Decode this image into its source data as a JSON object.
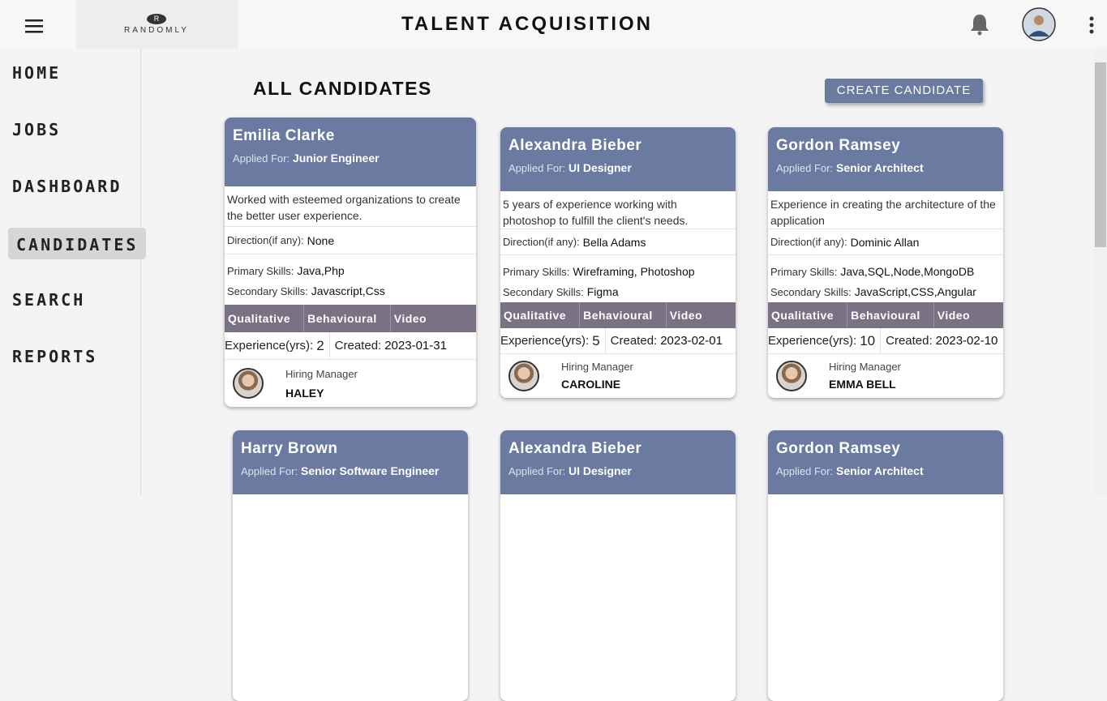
{
  "header": {
    "logo_mark": "R",
    "logo": "RANDOMLY",
    "title": "TALENT ACQUISITION"
  },
  "nav": [
    "HOME",
    "JOBS",
    "DASHBOARD",
    "CANDIDATES",
    "SEARCH",
    "REPORTS"
  ],
  "page": {
    "title": "ALL CANDIDATES",
    "create_button": "CREATE CANDIDATE"
  },
  "labels": {
    "applied_for": "Applied For:",
    "direction": "Direction(if any):",
    "primary_skills": "Primary Skills:",
    "secondary_skills": "Secondary Skills:",
    "tabs": [
      "Qualitative",
      "Behavioural",
      "Video"
    ],
    "experience": "Experience(yrs):",
    "created": "Created:",
    "hiring_manager": "Hiring Manager"
  },
  "cards": [
    {
      "name": "Emilia  Clarke",
      "applied_for": "Junior Engineer",
      "description": "Worked with esteemed organizations to create the better user experience.",
      "direction": "None",
      "primary_skills": "Java,Php",
      "secondary_skills": "Javascript,Css",
      "experience": 2,
      "created": "2023-01-31",
      "manager": "HALEY"
    },
    {
      "name": "Alexandra  Bieber",
      "applied_for": "UI Designer",
      "description": "5 years of experience working with photoshop to fulfill the client's needs.",
      "direction": "Bella Adams",
      "primary_skills": "Wireframing, Photoshop",
      "secondary_skills": "Figma",
      "experience": 5,
      "created": "2023-02-01",
      "manager": "CAROLINE"
    },
    {
      "name": "Gordon  Ramsey",
      "applied_for": "Senior Architect",
      "description": "Experience in creating the architecture of the application",
      "direction": "Dominic Allan",
      "primary_skills": "Java,SQL,Node,MongoDB",
      "secondary_skills": "JavaScript,CSS,Angular",
      "experience": 10,
      "created": "2023-02-10",
      "manager": "EMMA BELL"
    },
    {
      "name": "Harry  Brown",
      "applied_for": "Senior Software Engineer"
    },
    {
      "name": "Alexandra  Bieber",
      "applied_for": "UI Designer"
    },
    {
      "name": "Gordon  Ramsey",
      "applied_for": "Senior Architect"
    }
  ]
}
